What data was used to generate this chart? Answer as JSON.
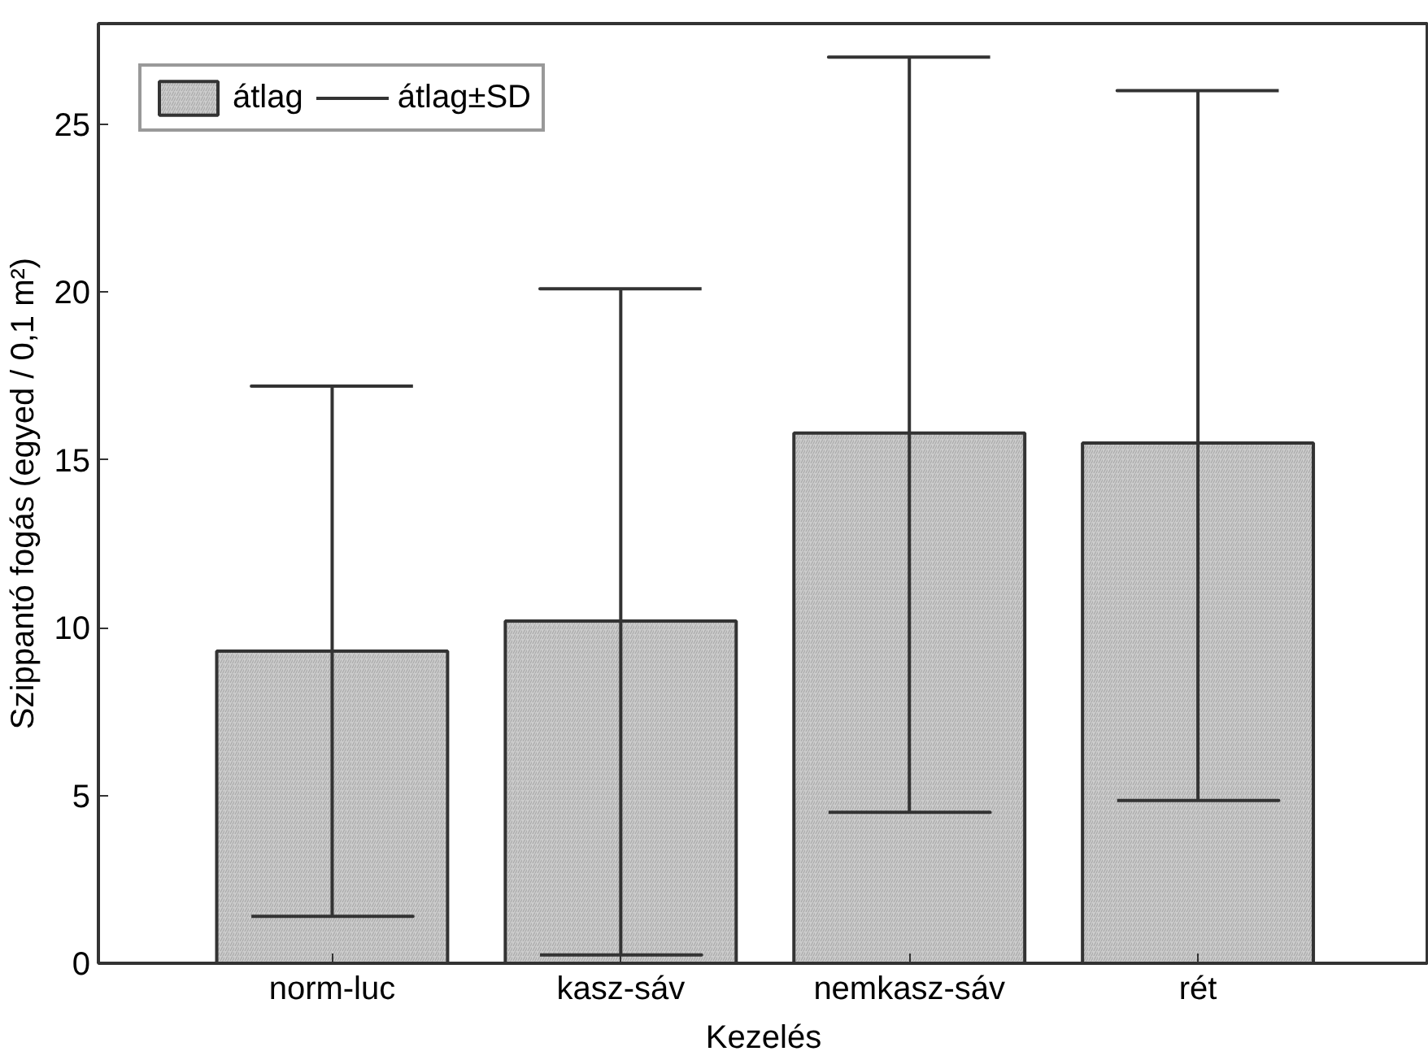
{
  "chart_data": {
    "type": "bar",
    "xlabel": "Kezelés",
    "ylabel": "Szippantó fogás (egyed / 0,1 m²)",
    "categories": [
      "norm-luc",
      "kasz-sáv",
      "nemkasz-sáv",
      "rét"
    ],
    "series": [
      {
        "name": "átlag",
        "color": "#cccccc",
        "values": [
          9.3,
          10.2,
          15.8,
          15.5
        ],
        "errors": [
          [
            1.4,
            17.2
          ],
          [
            0.25,
            20.1
          ],
          [
            4.5,
            27.0
          ],
          [
            4.85,
            26.0
          ]
        ]
      }
    ],
    "annotations": [
      "átlag±SD"
    ],
    "ylim": [
      0,
      28
    ],
    "yticks": [
      0,
      5,
      10,
      15,
      20,
      25
    ],
    "grid": false,
    "legend": "top left"
  }
}
